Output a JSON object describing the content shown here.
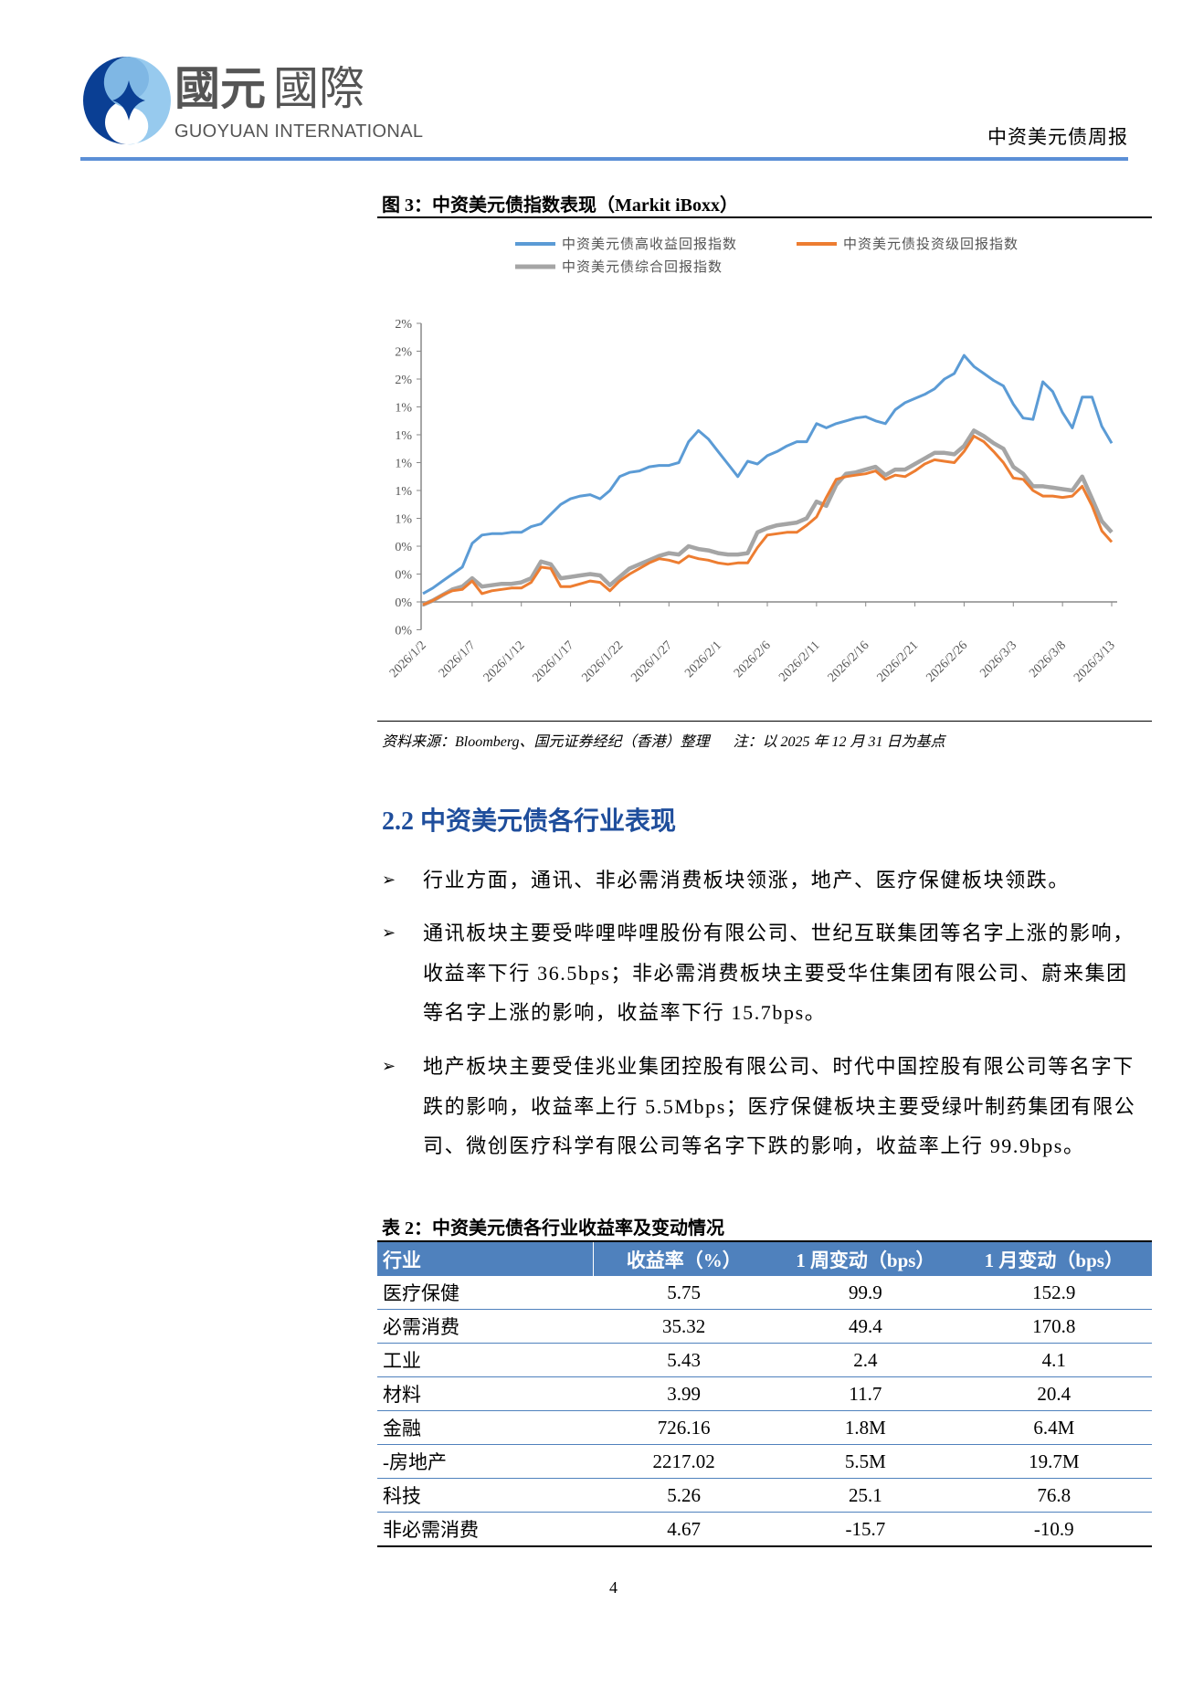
{
  "header": {
    "logo": {
      "name_cn": "國元國際",
      "name_en": "GUOYUAN INTERNATIONAL",
      "colors": {
        "dark_blue": "#0a3f94",
        "light_blue": "#8cc4ec",
        "text_gray": "#555555"
      }
    },
    "report_title": "中资美元债周报",
    "rule_color": "#5b8fd6"
  },
  "figure": {
    "title": "图 3：中资美元债指数表现（Markit iBoxx）",
    "source": "资料来源：Bloomberg、国元证券经纪（香港）整理",
    "note": "注：以 2025 年 12 月 31 日为基点"
  },
  "chart_data": {
    "type": "line",
    "title": "",
    "xlabel": "",
    "ylabel": "",
    "ylim": [
      -0.2,
      2.0
    ],
    "yticks": [
      -0.2,
      0,
      0.2,
      0.4,
      0.6,
      0.8,
      1.0,
      1.2,
      1.4,
      1.6,
      1.8,
      2.0
    ],
    "ytick_labels": [
      "0%",
      "0%",
      "0%",
      "0%",
      "1%",
      "1%",
      "1%",
      "1%",
      "1%",
      "2%",
      "2%",
      "2%"
    ],
    "xtick_labels": [
      "2026/1/2",
      "2026/1/7",
      "2026/1/12",
      "2026/1/17",
      "2026/1/22",
      "2026/1/27",
      "2026/2/1",
      "2026/2/6",
      "2026/2/11",
      "2026/2/16",
      "2026/2/21",
      "2026/2/26",
      "2026/3/3",
      "2026/3/8",
      "2026/3/13"
    ],
    "grid": false,
    "legend_position": "top",
    "x": [
      "2026/1/2",
      "2026/1/3",
      "2026/1/4",
      "2026/1/5",
      "2026/1/6",
      "2026/1/7",
      "2026/1/8",
      "2026/1/9",
      "2026/1/10",
      "2026/1/11",
      "2026/1/12",
      "2026/1/13",
      "2026/1/14",
      "2026/1/15",
      "2026/1/16",
      "2026/1/17",
      "2026/1/18",
      "2026/1/19",
      "2026/1/20",
      "2026/1/21",
      "2026/1/22",
      "2026/1/23",
      "2026/1/24",
      "2026/1/25",
      "2026/1/26",
      "2026/1/27",
      "2026/1/28",
      "2026/1/29",
      "2026/1/30",
      "2026/1/31",
      "2026/2/1",
      "2026/2/2",
      "2026/2/3",
      "2026/2/4",
      "2026/2/5",
      "2026/2/6",
      "2026/2/7",
      "2026/2/8",
      "2026/2/9",
      "2026/2/10",
      "2026/2/11",
      "2026/2/12",
      "2026/2/13",
      "2026/2/14",
      "2026/2/15",
      "2026/2/16",
      "2026/2/17",
      "2026/2/18",
      "2026/2/19",
      "2026/2/20",
      "2026/2/21",
      "2026/2/22",
      "2026/2/23",
      "2026/2/24",
      "2026/2/25",
      "2026/2/26",
      "2026/2/27",
      "2026/2/28",
      "2026/3/1",
      "2026/3/2",
      "2026/3/3",
      "2026/3/4",
      "2026/3/5",
      "2026/3/6",
      "2026/3/7",
      "2026/3/8",
      "2026/3/9",
      "2026/3/10",
      "2026/3/11",
      "2026/3/12",
      "2026/3/13"
    ],
    "series": [
      {
        "name": "中资美元债高收益回报指数",
        "color": "#5b9bd5",
        "values": [
          0.06,
          0.1,
          0.15,
          0.2,
          0.25,
          0.42,
          0.48,
          0.49,
          0.49,
          0.5,
          0.5,
          0.54,
          0.56,
          0.63,
          0.7,
          0.74,
          0.76,
          0.77,
          0.74,
          0.8,
          0.9,
          0.93,
          0.94,
          0.97,
          0.98,
          0.98,
          1.0,
          1.15,
          1.23,
          1.17,
          1.08,
          0.99,
          0.9,
          1.01,
          0.99,
          1.05,
          1.08,
          1.12,
          1.15,
          1.15,
          1.28,
          1.25,
          1.28,
          1.3,
          1.32,
          1.33,
          1.3,
          1.28,
          1.38,
          1.43,
          1.46,
          1.49,
          1.53,
          1.6,
          1.64,
          1.77,
          1.69,
          1.64,
          1.59,
          1.55,
          1.42,
          1.32,
          1.31,
          1.58,
          1.51,
          1.36,
          1.25,
          1.47,
          1.47,
          1.26,
          1.14
        ]
      },
      {
        "name": "中资美元债投资级回报指数",
        "color": "#ed7d31",
        "values": [
          -0.02,
          0.01,
          0.05,
          0.08,
          0.09,
          0.15,
          0.06,
          0.08,
          0.09,
          0.1,
          0.1,
          0.14,
          0.25,
          0.24,
          0.11,
          0.11,
          0.13,
          0.15,
          0.14,
          0.08,
          0.15,
          0.2,
          0.24,
          0.28,
          0.31,
          0.3,
          0.28,
          0.33,
          0.31,
          0.3,
          0.28,
          0.27,
          0.28,
          0.28,
          0.39,
          0.48,
          0.49,
          0.5,
          0.5,
          0.55,
          0.61,
          0.75,
          0.88,
          0.9,
          0.91,
          0.92,
          0.94,
          0.88,
          0.91,
          0.9,
          0.94,
          0.99,
          1.02,
          1.01,
          1.0,
          1.08,
          1.19,
          1.15,
          1.08,
          1.0,
          0.89,
          0.88,
          0.8,
          0.76,
          0.76,
          0.75,
          0.76,
          0.83,
          0.69,
          0.51,
          0.43
        ]
      },
      {
        "name": "中资美元债综合回报指数",
        "color": "#a5a5a5",
        "values": [
          -0.02,
          0.01,
          0.05,
          0.09,
          0.11,
          0.17,
          0.11,
          0.12,
          0.13,
          0.13,
          0.14,
          0.17,
          0.29,
          0.27,
          0.17,
          0.18,
          0.19,
          0.2,
          0.19,
          0.12,
          0.18,
          0.24,
          0.27,
          0.3,
          0.33,
          0.35,
          0.34,
          0.4,
          0.38,
          0.37,
          0.35,
          0.34,
          0.34,
          0.35,
          0.5,
          0.53,
          0.55,
          0.56,
          0.57,
          0.6,
          0.72,
          0.69,
          0.84,
          0.92,
          0.93,
          0.95,
          0.97,
          0.91,
          0.95,
          0.95,
          0.99,
          1.03,
          1.07,
          1.07,
          1.06,
          1.12,
          1.23,
          1.19,
          1.14,
          1.1,
          0.97,
          0.92,
          0.83,
          0.83,
          0.82,
          0.81,
          0.8,
          0.9,
          0.74,
          0.58,
          0.5
        ]
      }
    ]
  },
  "section": {
    "heading": "2.2 中资美元债各行业表现",
    "heading_color": "#1f4e9c",
    "bullets": [
      {
        "lines": [
          "行业方面，通讯、非必需消费板块领涨，地产、医疗保健板块领跌。"
        ]
      },
      {
        "lines": [
          "通讯板块主要受哔哩哔哩股份有限公司、世纪互联集团等名字上涨的影响，",
          "收益率下行 36.5bps；非必需消费板块主要受华住集团有限公司、蔚来集团",
          "等名字上涨的影响，收益率下行 15.7bps。"
        ]
      },
      {
        "lines": [
          "地产板块主要受佳兆业集团控股有限公司、时代中国控股有限公司等名字下",
          "跌的影响，收益率上行 5.5Mbps；医疗保健板块主要受绿叶制药集团有限公",
          "司、微创医疗科学有限公司等名字下跌的影响，收益率上行 99.9bps。"
        ]
      }
    ],
    "bullet_icon": "arrow-bullet-icon"
  },
  "table": {
    "title": "表 2：中资美元债各行业收益率及变动情况",
    "header_color": "#4f81bd",
    "columns": [
      "行业",
      "收益率（%）",
      "1 周变动（bps）",
      "1 月变动（bps）"
    ],
    "rows": [
      [
        "医疗保健",
        "5.75",
        "99.9",
        "152.9"
      ],
      [
        "必需消费",
        "35.32",
        "49.4",
        "170.8"
      ],
      [
        "工业",
        "5.43",
        "2.4",
        "4.1"
      ],
      [
        "材料",
        "3.99",
        "11.7",
        "20.4"
      ],
      [
        "金融",
        "726.16",
        "1.8M",
        "6.4M"
      ],
      [
        "-房地产",
        "2217.02",
        "5.5M",
        "19.7M"
      ],
      [
        "科技",
        "5.26",
        "25.1",
        "76.8"
      ],
      [
        "非必需消费",
        "4.67",
        "-15.7",
        "-10.9"
      ]
    ]
  },
  "footer": {
    "page_number": "4"
  }
}
